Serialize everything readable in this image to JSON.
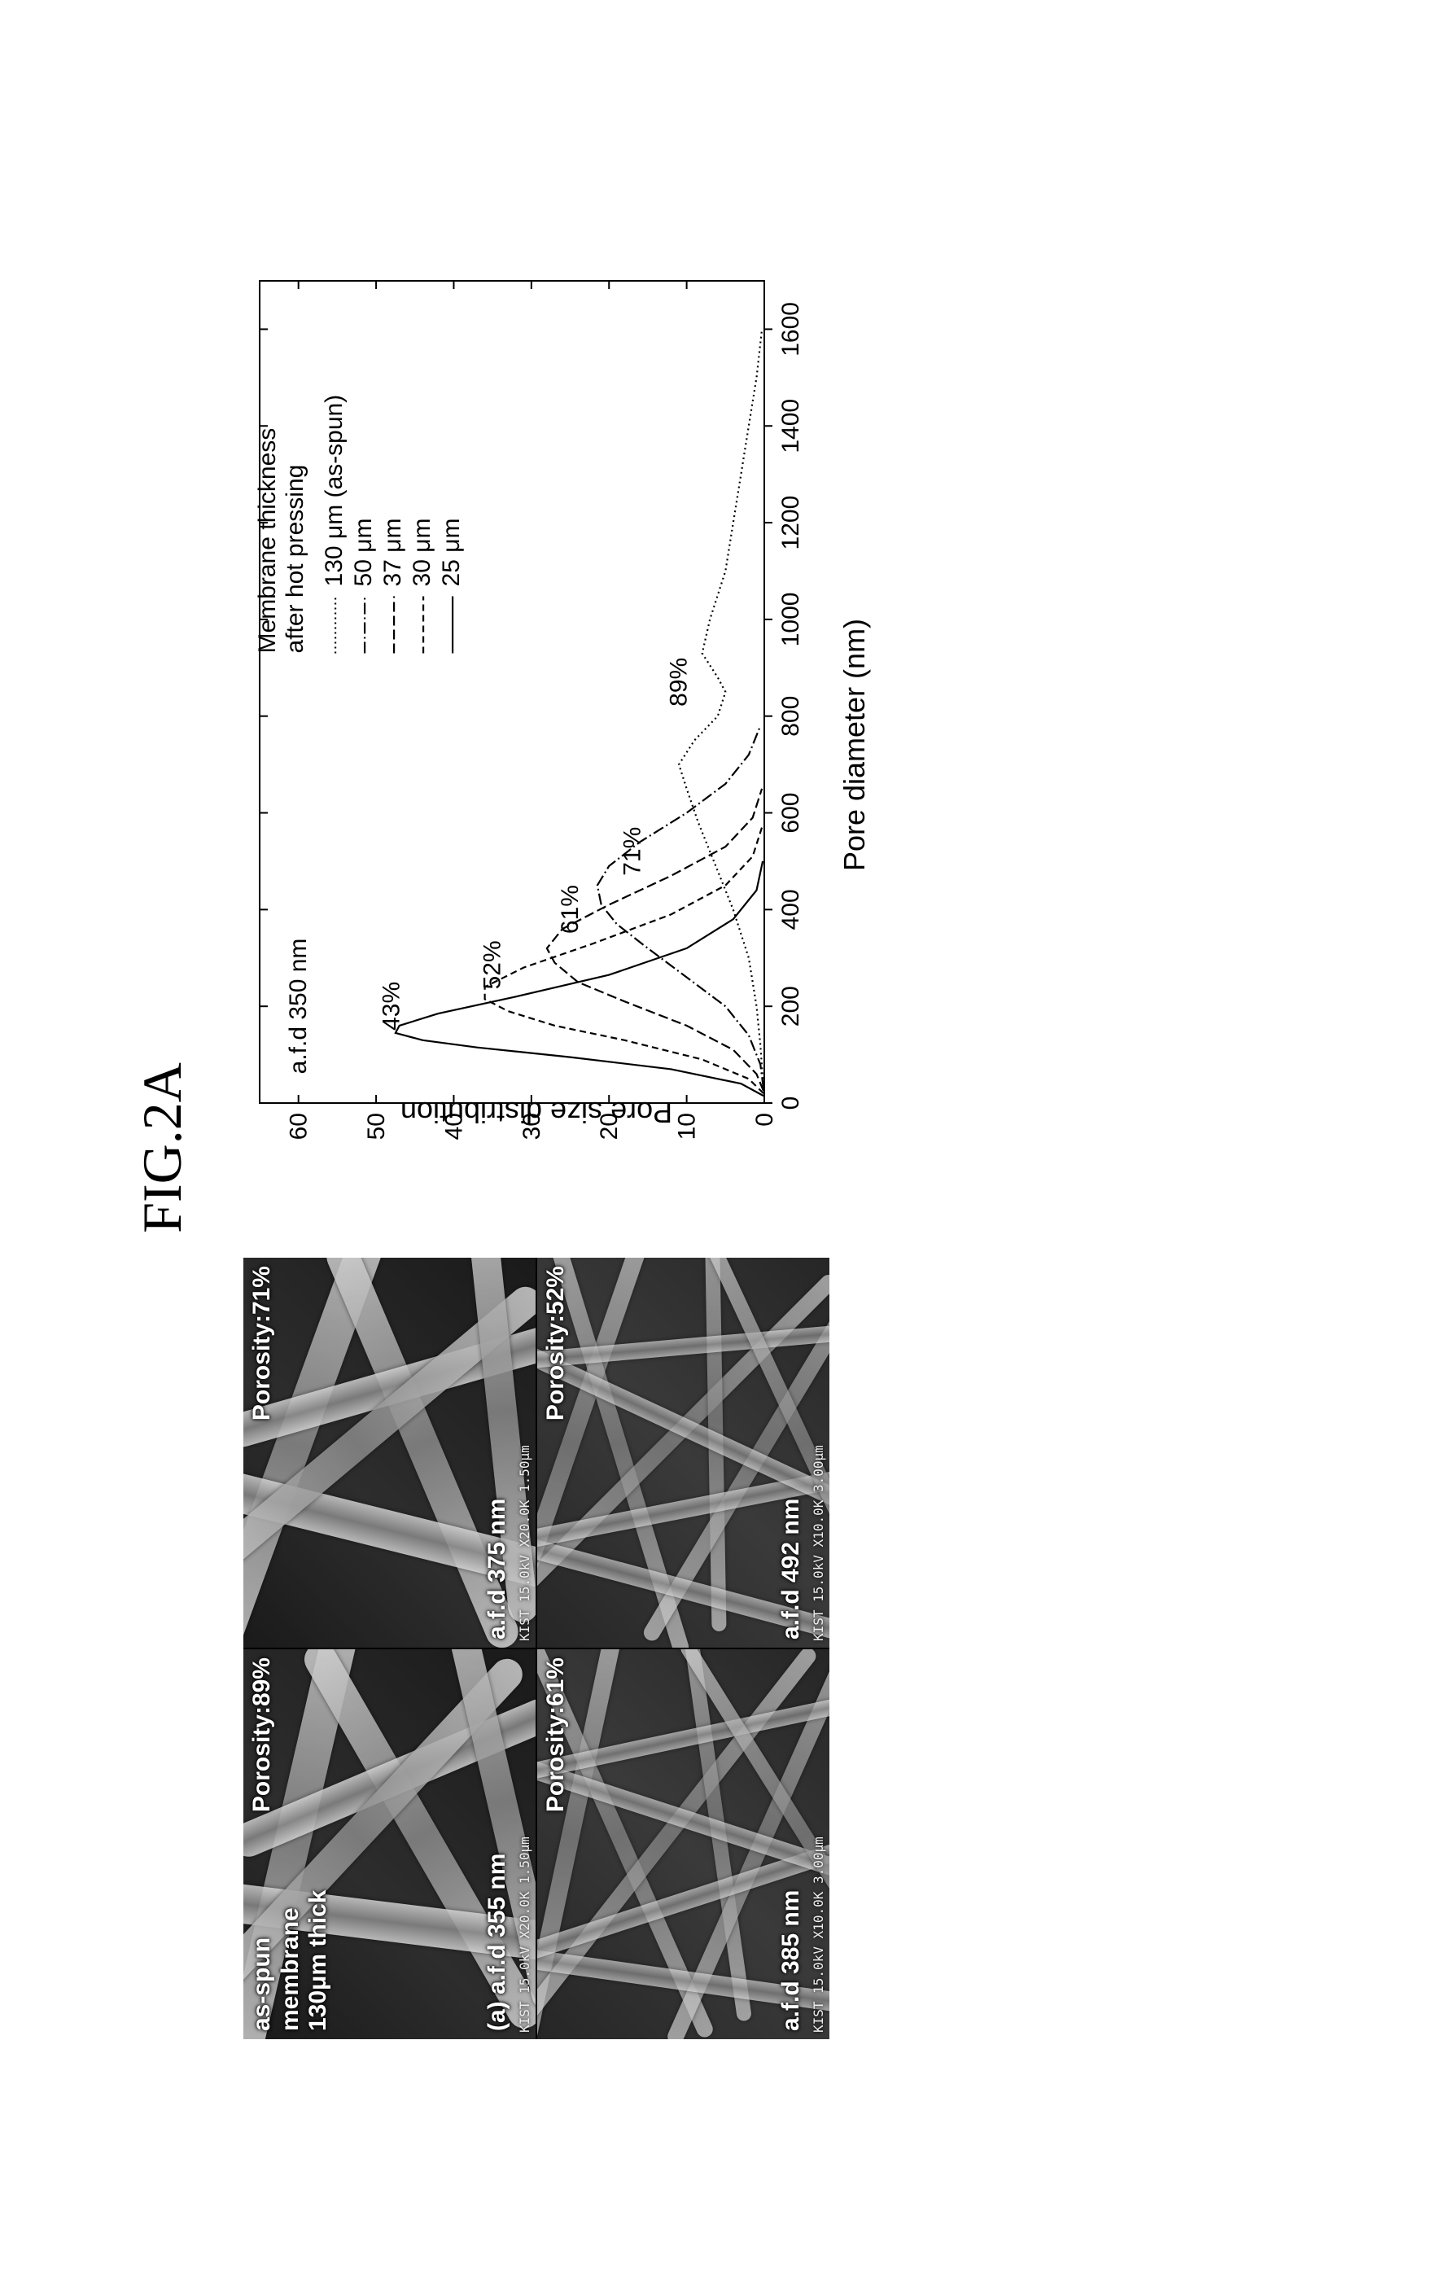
{
  "figure_label": "FIG.2A",
  "sem": {
    "panels": [
      {
        "key": "a",
        "row": 0,
        "col": 0,
        "density": "coarse",
        "top_lines": [
          "as-spun",
          "membrane",
          "130μm thick"
        ],
        "porosity_label": "Porosity:89%",
        "afd_label": "(a) a.f.d 355 nm",
        "footer": "KIST   15.0kV X20.0K 1.50μm",
        "porosity": 89,
        "afd_nm": 355
      },
      {
        "key": "b",
        "row": 0,
        "col": 1,
        "density": "coarse",
        "top_lines": [],
        "porosity_label": "Porosity:71%",
        "afd_label": "a.f.d 375 nm",
        "footer": "KIST   15.0kV X20.0K 1.50μm",
        "porosity": 71,
        "afd_nm": 375
      },
      {
        "key": "c",
        "row": 1,
        "col": 0,
        "density": "dense",
        "top_lines": [],
        "porosity_label": "Porosity:61%",
        "afd_label": "a.f.d 385 nm",
        "footer": "KIST   15.0kV X10.0K 3.00μm",
        "porosity": 61,
        "afd_nm": 385
      },
      {
        "key": "d",
        "row": 1,
        "col": 1,
        "density": "dense",
        "top_lines": [],
        "porosity_label": "Porosity:52%",
        "afd_label": "a.f.d 492 nm",
        "footer": "KIST   15.0kV X10.0K 3.00μm",
        "porosity": 52,
        "afd_nm": 492
      }
    ]
  },
  "chart": {
    "type": "line",
    "title": "a.f.d 350 nm",
    "title_fontsize": 30,
    "xlabel": "Pore diameter (nm)",
    "ylabel": "Pore size distribution",
    "label_fontsize": 36,
    "tick_fontsize": 30,
    "xlim": [
      0,
      1700
    ],
    "ylim": [
      0,
      65
    ],
    "xticks": [
      0,
      200,
      400,
      600,
      800,
      1000,
      1200,
      1400,
      1600
    ],
    "yticks": [
      0,
      10,
      20,
      30,
      40,
      50,
      60
    ],
    "background_color": "#ffffff",
    "axis_color": "#000000",
    "line_color": "#000000",
    "line_width": 2.2,
    "legend": {
      "title": "Membrane thickness\nafter hot pressing",
      "position": "upper-right",
      "fontsize": 30,
      "line_length": 70
    },
    "series": [
      {
        "label": "130 μm (as-spun)",
        "dash": "2,4",
        "porosity_pct": 89,
        "anno_xy": [
          820,
          10
        ],
        "points": [
          [
            50,
            0.2
          ],
          [
            120,
            0.5
          ],
          [
            200,
            1
          ],
          [
            300,
            2
          ],
          [
            400,
            4
          ],
          [
            500,
            6.5
          ],
          [
            580,
            8.5
          ],
          [
            650,
            10
          ],
          [
            700,
            11
          ],
          [
            750,
            9
          ],
          [
            800,
            6
          ],
          [
            850,
            5
          ],
          [
            880,
            6
          ],
          [
            930,
            8
          ],
          [
            1000,
            7
          ],
          [
            1100,
            5
          ],
          [
            1200,
            4
          ],
          [
            1300,
            3
          ],
          [
            1400,
            2
          ],
          [
            1500,
            1
          ],
          [
            1600,
            0.3
          ]
        ]
      },
      {
        "label": "50 μm",
        "dash": "14,4,2,4",
        "porosity_pct": 71,
        "anno_xy": [
          470,
          16
        ],
        "points": [
          [
            30,
            0.1
          ],
          [
            80,
            0.5
          ],
          [
            140,
            2
          ],
          [
            200,
            5
          ],
          [
            260,
            10
          ],
          [
            320,
            15
          ],
          [
            370,
            19
          ],
          [
            410,
            21
          ],
          [
            450,
            21.5
          ],
          [
            490,
            20
          ],
          [
            540,
            16
          ],
          [
            600,
            10
          ],
          [
            660,
            5
          ],
          [
            720,
            2
          ],
          [
            780,
            0.5
          ]
        ]
      },
      {
        "label": "37 μm",
        "dash": "12,5",
        "porosity_pct": 61,
        "anno_xy": [
          350,
          24
        ],
        "points": [
          [
            25,
            0.1
          ],
          [
            60,
            1
          ],
          [
            110,
            4
          ],
          [
            160,
            10
          ],
          [
            210,
            18
          ],
          [
            250,
            24
          ],
          [
            290,
            27
          ],
          [
            320,
            28
          ],
          [
            360,
            26
          ],
          [
            410,
            20
          ],
          [
            470,
            12
          ],
          [
            530,
            5
          ],
          [
            590,
            1.5
          ],
          [
            650,
            0.3
          ]
        ]
      },
      {
        "label": "30 μm",
        "dash": "8,5",
        "porosity_pct": 52,
        "anno_xy": [
          235,
          34
        ],
        "points": [
          [
            20,
            0.1
          ],
          [
            50,
            2
          ],
          [
            90,
            8
          ],
          [
            130,
            18
          ],
          [
            160,
            27
          ],
          [
            190,
            33
          ],
          [
            215,
            36
          ],
          [
            240,
            36
          ],
          [
            280,
            31
          ],
          [
            330,
            22
          ],
          [
            390,
            12
          ],
          [
            450,
            5
          ],
          [
            510,
            1.5
          ],
          [
            570,
            0.3
          ]
        ]
      },
      {
        "label": "25 μm",
        "dash": "",
        "porosity_pct": 43,
        "anno_xy": [
          150,
          47
        ],
        "points": [
          [
            15,
            0.1
          ],
          [
            40,
            3
          ],
          [
            70,
            12
          ],
          [
            95,
            25
          ],
          [
            115,
            37
          ],
          [
            130,
            44
          ],
          [
            145,
            47.5
          ],
          [
            160,
            47
          ],
          [
            185,
            42
          ],
          [
            220,
            32
          ],
          [
            265,
            20
          ],
          [
            320,
            10
          ],
          [
            380,
            4
          ],
          [
            440,
            1
          ],
          [
            500,
            0.2
          ]
        ]
      }
    ]
  }
}
